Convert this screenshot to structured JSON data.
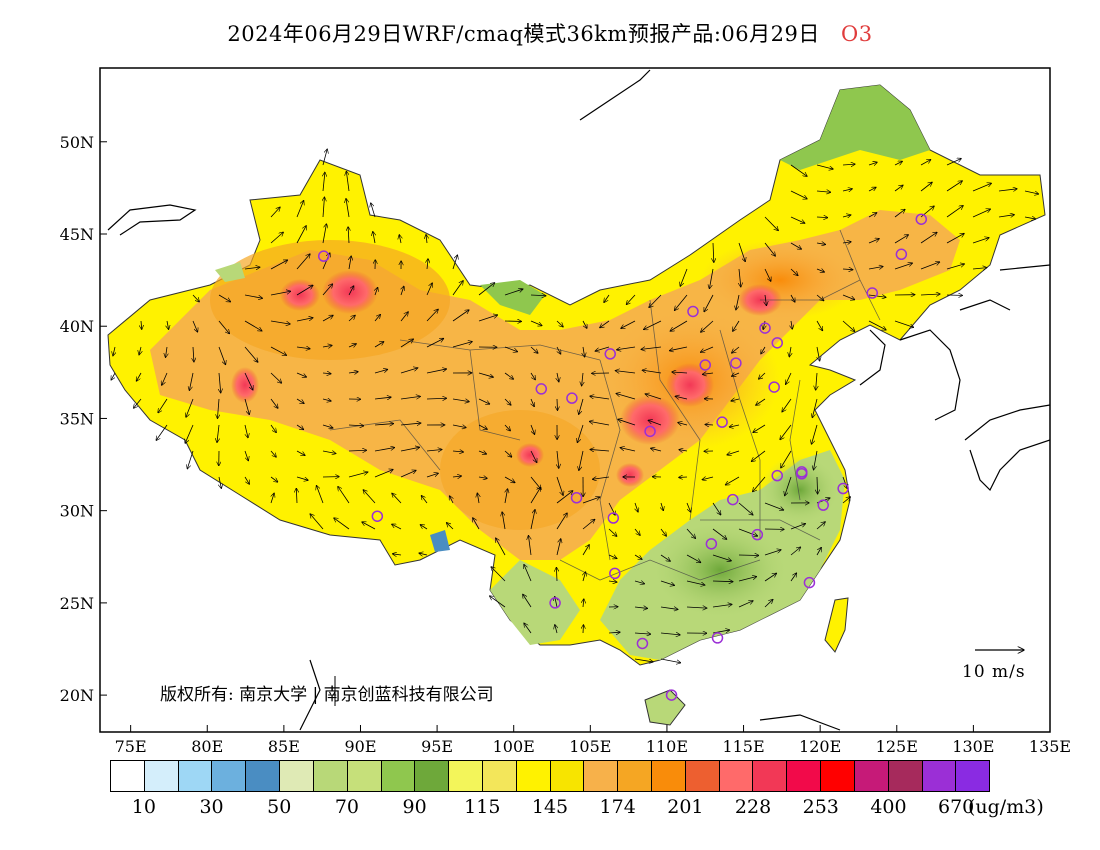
{
  "header": {
    "title": "2024年06月29日WRF/cmaq模式36km预报产品:06月29日",
    "pollutant": "O3"
  },
  "map": {
    "lon_range": [
      73,
      135
    ],
    "lat_range": [
      18,
      54
    ],
    "lon_ticks": [
      "75E",
      "80E",
      "85E",
      "90E",
      "95E",
      "100E",
      "105E",
      "110E",
      "115E",
      "120E",
      "125E",
      "130E",
      "135E"
    ],
    "lat_ticks": [
      "20N",
      "25N",
      "30N",
      "35N",
      "40N",
      "45N",
      "50N"
    ],
    "wind_vectors": true,
    "station_markers_color": "#9b2fd6",
    "copyright_text": "版权所有: 南京大学 | 南京创蓝科技有限公司",
    "wind_legend_label": "10 m/s"
  },
  "colorbar": {
    "colors": [
      "#ffffff",
      "#d4eefb",
      "#9ed7f5",
      "#6cb0de",
      "#4a8dc2",
      "#dfeab5",
      "#b8d878",
      "#c6e07a",
      "#8fc74e",
      "#6ea83a",
      "#f3f55a",
      "#f3e65a",
      "#fff200",
      "#f7e400",
      "#f7b14a",
      "#f5a623",
      "#f98c0a",
      "#ed5f30",
      "#ff6a6a",
      "#f23856",
      "#f20a4a",
      "#ff0000",
      "#c61a78",
      "#a62a5c",
      "#9b2fd6",
      "#8a2be2"
    ],
    "labels": [
      "10",
      "30",
      "50",
      "70",
      "90",
      "115",
      "145",
      "174",
      "201",
      "228",
      "253",
      "400",
      "670"
    ],
    "unit": "(ug/m3)"
  }
}
